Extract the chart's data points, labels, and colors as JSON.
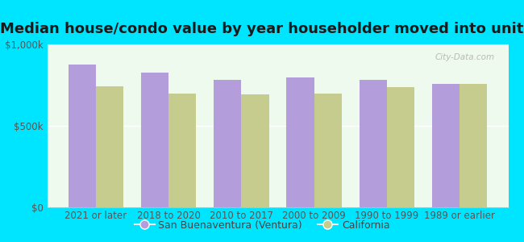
{
  "title": "Median house/condo value by year householder moved into unit",
  "categories": [
    "2021 or later",
    "2018 to 2020",
    "2010 to 2017",
    "2000 to 2009",
    "1990 to 1999",
    "1989 or earlier"
  ],
  "ventura_values": [
    880000,
    830000,
    785000,
    800000,
    785000,
    760000
  ],
  "california_values": [
    745000,
    700000,
    695000,
    700000,
    740000,
    760000
  ],
  "ventura_color": "#b39ddb",
  "california_color": "#c5cc8e",
  "background_color": "#00e5ff",
  "plot_bg_color": "#edfaed",
  "ylim": [
    0,
    1000000
  ],
  "ytick_labels": [
    "$0",
    "$500k",
    "$1,000k"
  ],
  "ytick_vals": [
    0,
    500000,
    1000000
  ],
  "legend_ventura": "San Buenaventura (Ventura)",
  "legend_california": "California",
  "watermark": "City-Data.com",
  "title_fontsize": 13,
  "tick_fontsize": 8.5,
  "legend_fontsize": 9,
  "bar_width": 0.38
}
